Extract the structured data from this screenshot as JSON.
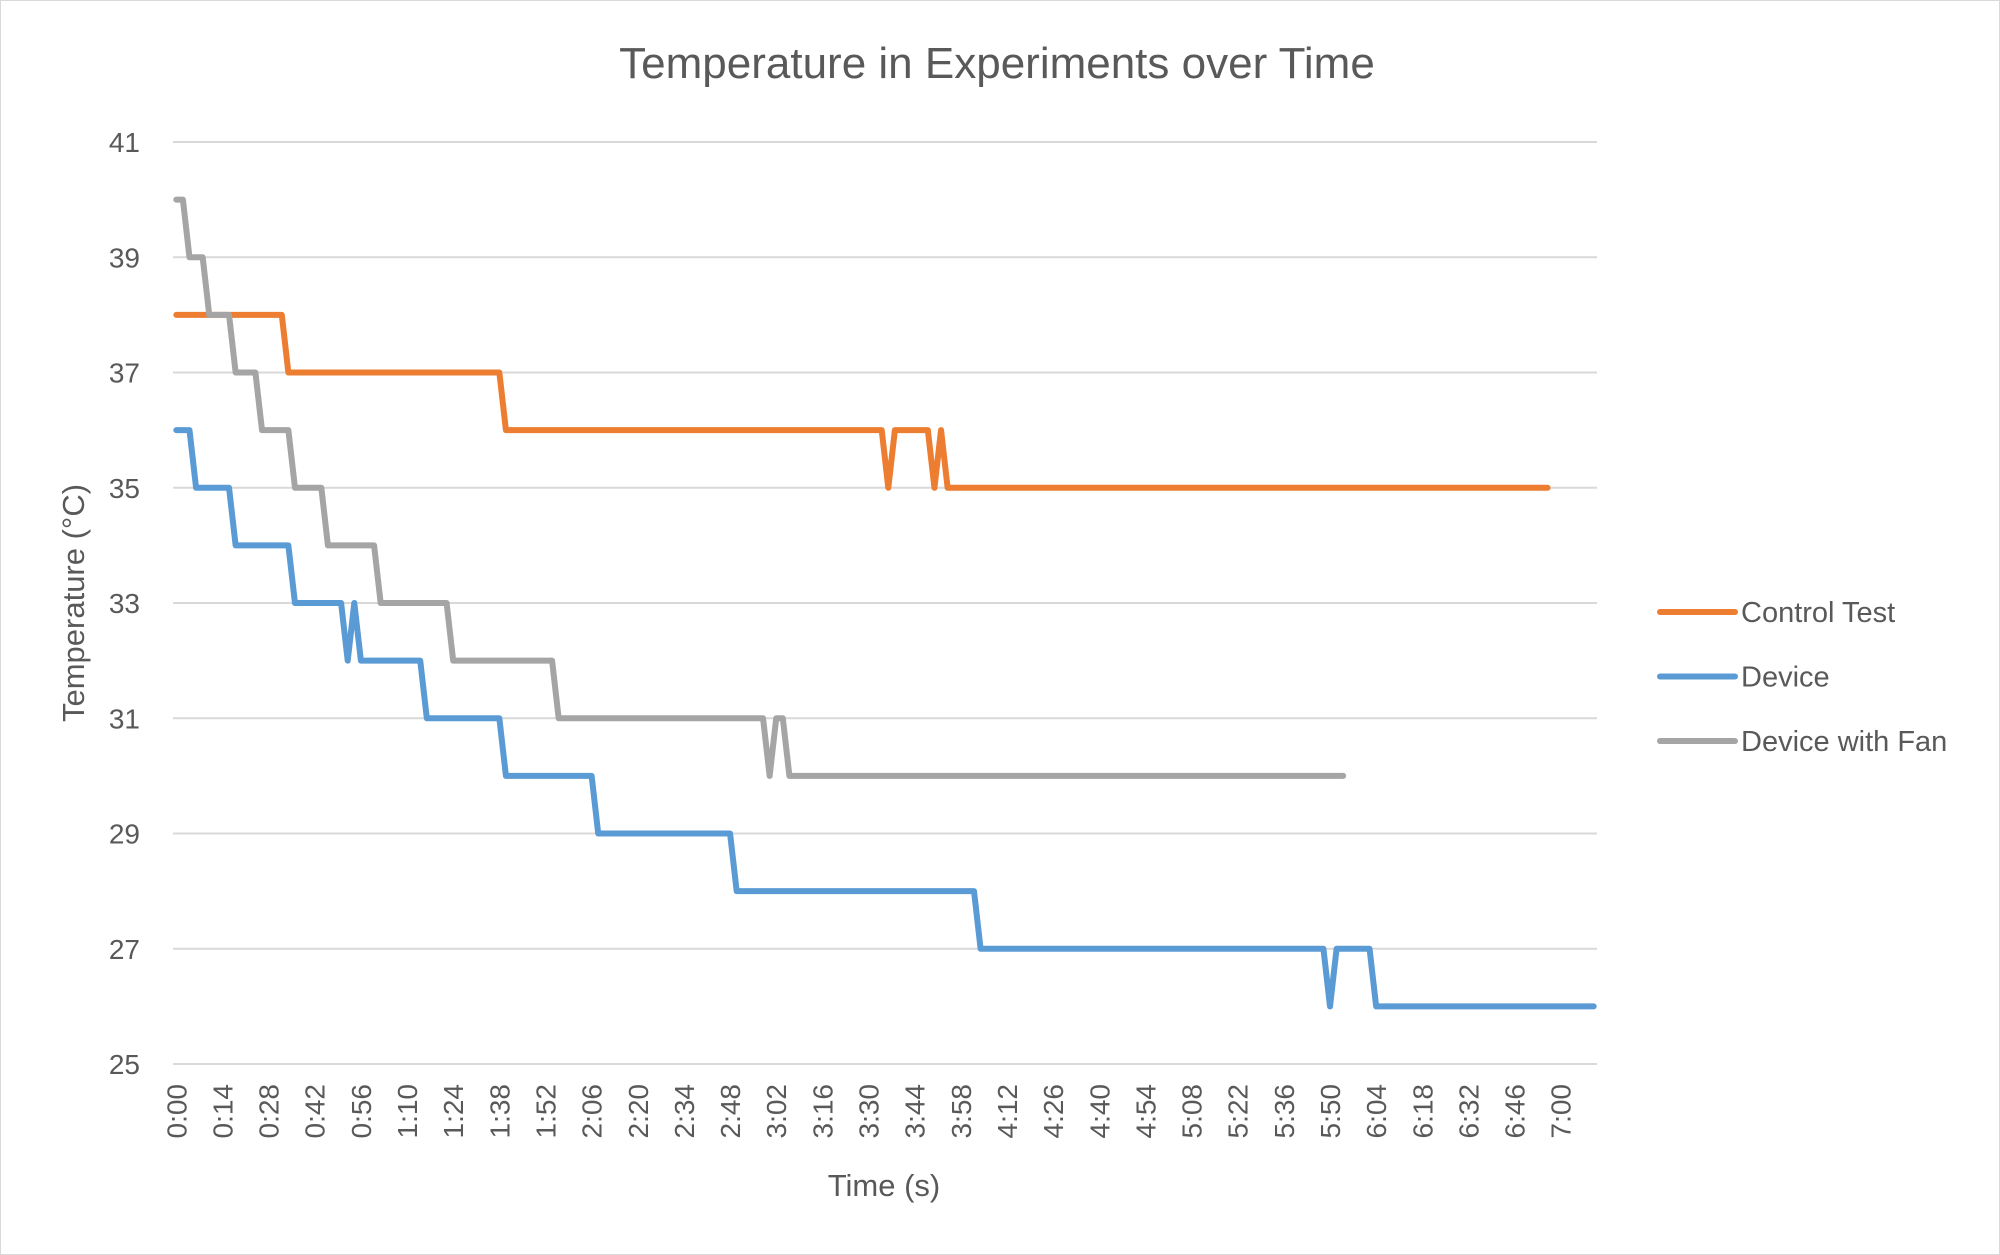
{
  "chart_data": {
    "type": "line",
    "title": "Temperature in Experiments over Time",
    "xlabel": "Time (s)",
    "ylabel": "Temperature (°C)",
    "ylim": [
      25,
      41
    ],
    "y_ticks": [
      "25",
      "27",
      "29",
      "31",
      "33",
      "35",
      "37",
      "39",
      "41"
    ],
    "x_ticks": [
      "0:00",
      "0:14",
      "0:28",
      "0:42",
      "0:56",
      "1:10",
      "1:24",
      "1:38",
      "1:52",
      "2:06",
      "2:20",
      "2:34",
      "2:48",
      "3:02",
      "3:16",
      "3:30",
      "3:44",
      "3:58",
      "4:12",
      "4:26",
      "4:40",
      "4:54",
      "5:08",
      "5:22",
      "5:36",
      "5:50",
      "6:04",
      "6:18",
      "6:32",
      "6:46",
      "7:00"
    ],
    "xlim": [
      "0:00",
      "7:10"
    ],
    "grid": "horizontal",
    "legend": "right",
    "series": [
      {
        "name": "Control Test",
        "color": "#ED7D31",
        "points": [
          [
            "0:00",
            38
          ],
          [
            "0:32",
            38
          ],
          [
            "0:34",
            37
          ],
          [
            "1:38",
            37
          ],
          [
            "1:40",
            36
          ],
          [
            "3:34",
            36
          ],
          [
            "3:36",
            35
          ],
          [
            "3:38",
            36
          ],
          [
            "3:48",
            36
          ],
          [
            "3:50",
            35
          ],
          [
            "3:52",
            36
          ],
          [
            "3:54",
            35
          ],
          [
            "6:56",
            35
          ]
        ]
      },
      {
        "name": "Device",
        "color": "#5B9BD5",
        "points": [
          [
            "0:00",
            36
          ],
          [
            "0:04",
            36
          ],
          [
            "0:06",
            35
          ],
          [
            "0:16",
            35
          ],
          [
            "0:18",
            34
          ],
          [
            "0:34",
            34
          ],
          [
            "0:36",
            33
          ],
          [
            "0:50",
            33
          ],
          [
            "0:52",
            32
          ],
          [
            "0:54",
            33
          ],
          [
            "0:56",
            32
          ],
          [
            "1:14",
            32
          ],
          [
            "1:16",
            31
          ],
          [
            "1:38",
            31
          ],
          [
            "1:40",
            30
          ],
          [
            "2:06",
            30
          ],
          [
            "2:08",
            29
          ],
          [
            "2:48",
            29
          ],
          [
            "2:50",
            28
          ],
          [
            "4:02",
            28
          ],
          [
            "4:04",
            27
          ],
          [
            "5:48",
            27
          ],
          [
            "5:50",
            26
          ],
          [
            "5:52",
            27
          ],
          [
            "6:02",
            27
          ],
          [
            "6:04",
            26
          ],
          [
            "7:10",
            26
          ]
        ]
      },
      {
        "name": "Device with Fan",
        "color": "#A5A5A5",
        "points": [
          [
            "0:00",
            40
          ],
          [
            "0:02",
            40
          ],
          [
            "0:04",
            39
          ],
          [
            "0:08",
            39
          ],
          [
            "0:10",
            38
          ],
          [
            "0:16",
            38
          ],
          [
            "0:18",
            37
          ],
          [
            "0:24",
            37
          ],
          [
            "0:26",
            36
          ],
          [
            "0:34",
            36
          ],
          [
            "0:36",
            35
          ],
          [
            "0:44",
            35
          ],
          [
            "0:46",
            34
          ],
          [
            "1:00",
            34
          ],
          [
            "1:02",
            33
          ],
          [
            "1:22",
            33
          ],
          [
            "1:24",
            32
          ],
          [
            "1:54",
            32
          ],
          [
            "1:56",
            31
          ],
          [
            "2:58",
            31
          ],
          [
            "3:00",
            30
          ],
          [
            "3:02",
            31
          ],
          [
            "3:04",
            31
          ],
          [
            "3:06",
            30
          ],
          [
            "5:54",
            30
          ]
        ]
      }
    ]
  }
}
